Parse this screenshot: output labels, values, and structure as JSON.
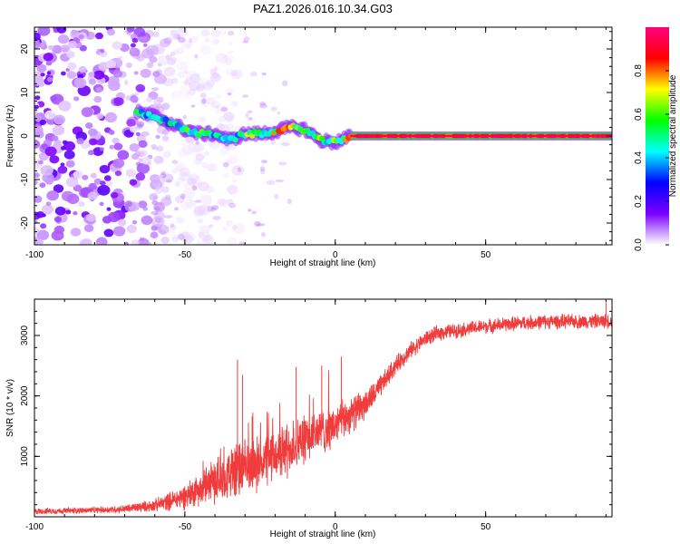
{
  "title": "PAZ1.2026.016.10.34.G03",
  "chart_data": [
    {
      "type": "heatmap",
      "xlabel": "Height of straight line (km)",
      "ylabel": "Frequency (Hz)",
      "xlim": [
        -100,
        92
      ],
      "ylim": [
        -25,
        25
      ],
      "xticks": [
        -100,
        -50,
        0,
        50
      ],
      "yticks": [
        -20,
        -10,
        0,
        10,
        20
      ],
      "colorbar": {
        "label": "Normalized spectral amplitude",
        "range": [
          0,
          1
        ],
        "ticks": [
          "0.0",
          "0.2",
          "0.4",
          "0.6",
          "0.8"
        ],
        "colors": [
          "#ffffff",
          "#7b00ff",
          "#0000ff",
          "#00ffff",
          "#00ff00",
          "#ffff00",
          "#ff0000",
          "#ff0080"
        ]
      },
      "ridge": {
        "x": [
          -66,
          -60,
          -55,
          -50,
          -45,
          -40,
          -35,
          -30,
          -25,
          -20,
          -15,
          -10,
          -5,
          0,
          5,
          10,
          20,
          40,
          60,
          80,
          92
        ],
        "freq": [
          5.5,
          4.5,
          3,
          1.5,
          0.5,
          0.5,
          -1,
          0.5,
          0.5,
          1,
          2,
          1.5,
          -1,
          -1.5,
          0,
          0,
          0,
          0,
          0,
          0,
          0
        ],
        "amplitude": [
          0.45,
          0.45,
          0.5,
          0.55,
          0.55,
          0.45,
          0.4,
          0.6,
          0.65,
          0.7,
          0.7,
          0.65,
          0.6,
          0.6,
          0.85,
          0.9,
          0.9,
          0.9,
          0.9,
          0.9,
          0.9
        ]
      }
    },
    {
      "type": "line",
      "xlabel": "Height of straight line (km)",
      "ylabel": "SNR (10 * v/v)",
      "xlim": [
        -100,
        92
      ],
      "ylim": [
        0,
        3600
      ],
      "xticks": [
        -100,
        -50,
        0,
        50
      ],
      "yticks": [
        1000,
        2000,
        3000
      ],
      "series": [
        {
          "name": "SNR",
          "color": "#f03c3c",
          "x": [
            -100,
            -90,
            -80,
            -70,
            -60,
            -55,
            -50,
            -45,
            -40,
            -35,
            -33,
            -30,
            -25,
            -20,
            -15,
            -10,
            -5,
            0,
            5,
            10,
            15,
            20,
            25,
            30,
            35,
            40,
            50,
            60,
            70,
            80,
            92
          ],
          "mean": [
            90,
            100,
            110,
            130,
            190,
            260,
            340,
            480,
            600,
            700,
            750,
            800,
            900,
            1000,
            1150,
            1280,
            1420,
            1500,
            1700,
            1850,
            2150,
            2500,
            2750,
            2950,
            3050,
            3080,
            3150,
            3200,
            3230,
            3230,
            3240
          ],
          "noise": [
            60,
            60,
            60,
            80,
            120,
            180,
            250,
            320,
            420,
            480,
            600,
            520,
            520,
            520,
            500,
            480,
            460,
            400,
            350,
            300,
            220,
            180,
            160,
            150,
            150,
            140,
            140,
            140,
            140,
            140,
            140
          ],
          "peaks": [
            {
              "x": -32.5,
              "y": 2600
            },
            {
              "x": -30.8,
              "y": 2350
            },
            {
              "x": -13,
              "y": 2480
            },
            {
              "x": -4.5,
              "y": 2500
            },
            {
              "x": 2,
              "y": 2650
            },
            {
              "x": 90,
              "y": 3550
            }
          ]
        }
      ]
    }
  ]
}
